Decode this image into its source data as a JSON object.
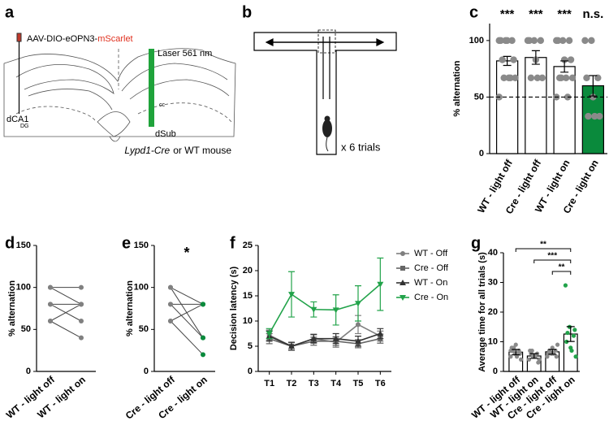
{
  "figure_a": {
    "label": "a",
    "virus_prefix": "AAV-DIO-eOPN3-",
    "virus_suffix": "mScarlet",
    "laser": "Laser 561 nm",
    "regions": [
      "dCA1",
      "dSub",
      "cc",
      "DG"
    ],
    "caption_italic": "Lypd1-Cre",
    "caption_rest": "or WT mouse"
  },
  "figure_b": {
    "label": "b",
    "trials": "x 6 trials"
  },
  "chart_data": [
    {
      "type": "bar",
      "label": "c",
      "ylabel": "% alternation",
      "categories": [
        "WT - light off",
        "Cre - light off",
        "WT - light on",
        "Cre - light on"
      ],
      "values": [
        82,
        85,
        77,
        60
      ],
      "errors": [
        4,
        6,
        5,
        9
      ],
      "colors": [
        "#ffffff",
        "#ffffff",
        "#ffffff",
        "#0a8a3c"
      ],
      "category_colors": [
        "#000000",
        "#000000",
        "#000000",
        "#0a8a3c"
      ],
      "annotations": [
        "***",
        "***",
        "***",
        "n.s."
      ],
      "reference_line": 50,
      "points": [
        [
          100,
          100,
          100,
          100,
          100,
          83,
          83,
          67,
          67,
          67,
          67,
          50
        ],
        [
          100,
          100,
          100,
          100,
          83,
          67,
          67,
          67
        ],
        [
          100,
          100,
          100,
          100,
          83,
          83,
          67,
          67,
          67,
          67,
          50,
          50
        ],
        [
          100,
          100,
          67,
          67,
          50,
          33,
          33,
          33
        ]
      ],
      "point_color": "#8a8a8a",
      "ylim": [
        0,
        115
      ],
      "yticks": [
        0,
        50,
        100
      ]
    },
    {
      "type": "paired",
      "label": "d",
      "ylabel": "% alternation",
      "categories": [
        "WT - light off",
        "WT - light on"
      ],
      "category_colors": [
        "#000000",
        "#000000"
      ],
      "point_colors": [
        "#808080",
        "#808080"
      ],
      "line_color": "#444444",
      "series": [
        {
          "values": [
            100,
            80
          ]
        },
        {
          "values": [
            100,
            100
          ]
        },
        {
          "values": [
            80,
            60
          ]
        },
        {
          "values": [
            80,
            80
          ]
        },
        {
          "values": [
            60,
            80
          ]
        },
        {
          "values": [
            60,
            40
          ]
        }
      ],
      "ylim": [
        0,
        150
      ],
      "yticks": [
        0,
        50,
        100,
        150
      ]
    },
    {
      "type": "paired",
      "label": "e",
      "ylabel": "% alternation",
      "categories": [
        "Cre - light off",
        "Cre - light on"
      ],
      "category_colors": [
        "#000000",
        "#0a8a3c"
      ],
      "point_colors": [
        "#808080",
        "#0a8a3c"
      ],
      "line_color": "#444444",
      "annotation": "*",
      "series": [
        {
          "values": [
            100,
            80
          ]
        },
        {
          "values": [
            100,
            40
          ]
        },
        {
          "values": [
            80,
            40
          ]
        },
        {
          "values": [
            80,
            80
          ]
        },
        {
          "values": [
            60,
            20
          ]
        },
        {
          "values": [
            60,
            80
          ]
        }
      ],
      "ylim": [
        0,
        150
      ],
      "yticks": [
        0,
        50,
        100,
        150
      ]
    },
    {
      "type": "line",
      "label": "f",
      "ylabel": "Decision latency (s)",
      "categories": [
        "T1",
        "T2",
        "T3",
        "T4",
        "T5",
        "T6"
      ],
      "series": [
        {
          "name": "WT - Off",
          "color": "#7f7f7f",
          "marker": "circle",
          "values": [
            7.2,
            5.0,
            6.5,
            5.8,
            9.3,
            7.0
          ],
          "errors": [
            1.0,
            0.8,
            0.9,
            1.0,
            1.8,
            1.0
          ]
        },
        {
          "name": "Cre - Off",
          "color": "#666666",
          "marker": "square",
          "values": [
            6.5,
            5.0,
            6.0,
            6.0,
            5.5,
            6.5
          ],
          "errors": [
            1.0,
            0.7,
            0.8,
            0.9,
            0.8,
            0.9
          ]
        },
        {
          "name": "WT - On",
          "color": "#333333",
          "marker": "triangle-up",
          "values": [
            7.0,
            5.0,
            6.5,
            6.5,
            6.0,
            7.5
          ],
          "errors": [
            1.0,
            0.8,
            0.8,
            1.0,
            1.0,
            1.0
          ]
        },
        {
          "name": "Cre - On",
          "color": "#22a34a",
          "marker": "triangle-down",
          "values": [
            7.5,
            15.3,
            12.3,
            12.2,
            13.5,
            17.3
          ],
          "errors": [
            1.0,
            4.5,
            1.5,
            3.0,
            3.5,
            5.2
          ]
        }
      ],
      "ylim": [
        0,
        25
      ],
      "yticks": [
        0,
        5,
        10,
        15,
        20,
        25
      ],
      "legend": "right"
    },
    {
      "type": "bar",
      "label": "g",
      "ylabel": "Average time for all trials (s)",
      "categories": [
        "WT - light off",
        "WT - light on",
        "Cre - light off",
        "Cre - light on"
      ],
      "values": [
        6.5,
        5.2,
        6.6,
        12.6
      ],
      "errors": [
        0.9,
        0.8,
        0.8,
        2.5
      ],
      "colors": [
        "#ffffff",
        "#ffffff",
        "#ffffff",
        "#ffffff"
      ],
      "category_colors": [
        "#000000",
        "#000000",
        "#000000",
        "#0a8a3c"
      ],
      "points": [
        [
          5,
          6,
          7,
          8,
          9,
          6,
          7,
          5,
          4,
          8,
          6,
          7
        ],
        [
          4,
          5,
          6,
          7,
          5,
          3,
          6,
          5,
          4,
          7
        ],
        [
          5,
          6,
          7,
          6,
          8,
          5,
          7,
          6,
          9
        ],
        [
          29,
          15,
          12,
          10,
          8,
          14,
          13,
          7,
          5
        ]
      ],
      "point_colors": [
        "#8a8a8a",
        "#8a8a8a",
        "#8a8a8a",
        "#22a34a"
      ],
      "comparisons": [
        {
          "pair": [
            0,
            3
          ],
          "label": "**"
        },
        {
          "pair": [
            1,
            3
          ],
          "label": "***"
        },
        {
          "pair": [
            2,
            3
          ],
          "label": "**"
        }
      ],
      "ylim": [
        0,
        40
      ],
      "yticks": [
        0,
        10,
        20,
        30,
        40
      ]
    }
  ]
}
